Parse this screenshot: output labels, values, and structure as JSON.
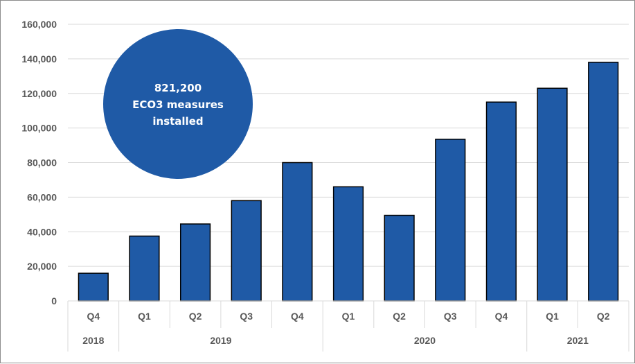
{
  "chart_data": {
    "type": "bar",
    "title": "",
    "xlabel": "",
    "ylabel": "",
    "ylim": [
      0,
      160000
    ],
    "yticks": [
      0,
      20000,
      40000,
      60000,
      80000,
      100000,
      120000,
      140000,
      160000
    ],
    "ytick_labels": [
      "0",
      "20,000",
      "40,000",
      "60,000",
      "80,000",
      "100,000",
      "120,000",
      "140,000",
      "160,000"
    ],
    "categories": [
      "Q4",
      "Q1",
      "Q2",
      "Q3",
      "Q4",
      "Q1",
      "Q2",
      "Q3",
      "Q4",
      "Q1",
      "Q2"
    ],
    "years": [
      {
        "label": "2018",
        "span": 1
      },
      {
        "label": "2019",
        "span": 4
      },
      {
        "label": "2020",
        "span": 4
      },
      {
        "label": "2021",
        "span": 2
      }
    ],
    "values": [
      16000,
      37500,
      44500,
      58000,
      80000,
      66000,
      49500,
      93500,
      115000,
      123000,
      138000
    ],
    "bar_color": "#1f5aa6",
    "grid": true,
    "legend": "none",
    "annotation": {
      "lines": [
        "821,200",
        "ECO3 measures",
        "installed"
      ],
      "color": "#1f5aa6"
    }
  }
}
